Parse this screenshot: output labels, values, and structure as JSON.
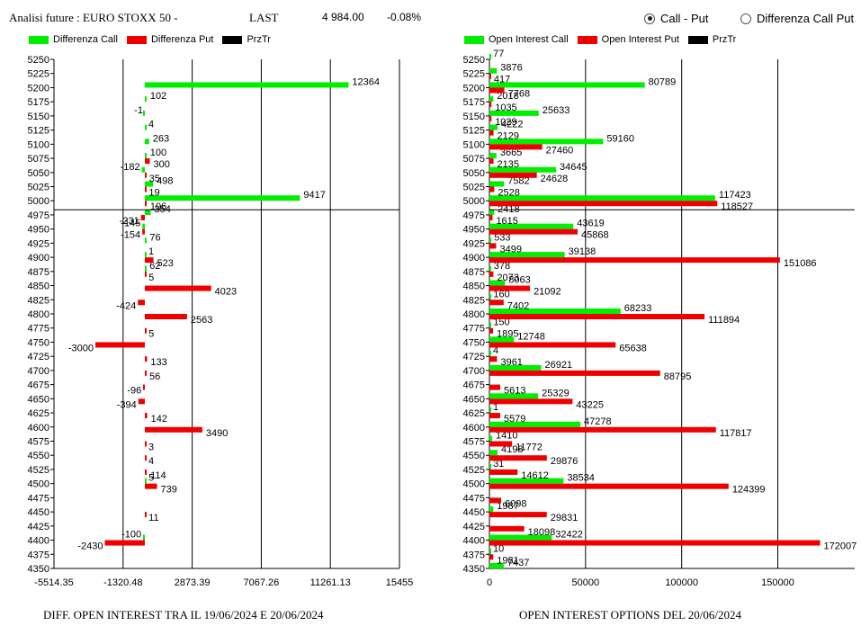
{
  "header": {
    "title": "Analisi future : EURO STOXX 50 -",
    "last_label": "LAST",
    "last_value": "4 984.00",
    "change": "-0.08%",
    "radio_call_put": "Call - Put",
    "radio_diff": "Differenza Call Put",
    "selected": "call-put"
  },
  "colors": {
    "call": "#00ee00",
    "put": "#ee0000",
    "prztr": "#000000"
  },
  "left_legend": [
    "Differenza Call",
    "Differenza Put",
    "PrzTr"
  ],
  "right_legend": [
    "Open Interest Call",
    "Open Interest Put",
    "PrzTr"
  ],
  "captions": {
    "left": "DIFF. OPEN INTEREST TRA IL 19/06/2024 E 20/06/2024",
    "right": "OPEN INTEREST OPTIONS DEL 20/06/2024"
  },
  "chart_data": [
    {
      "type": "bar",
      "orientation": "horizontal",
      "categories": [
        4350,
        4375,
        4400,
        4425,
        4450,
        4475,
        4500,
        4525,
        4550,
        4575,
        4600,
        4625,
        4650,
        4675,
        4700,
        4725,
        4750,
        4775,
        4800,
        4825,
        4850,
        4875,
        4900,
        4925,
        4950,
        4975,
        5000,
        5025,
        5050,
        5075,
        5100,
        5125,
        5150,
        5175,
        5200,
        5225,
        5250
      ],
      "series": [
        {
          "name": "Differenza Call",
          "values": [
            null,
            null,
            -100,
            null,
            null,
            null,
            5,
            null,
            null,
            null,
            null,
            null,
            null,
            null,
            null,
            null,
            null,
            null,
            null,
            null,
            null,
            62,
            1,
            76,
            -145,
            354,
            9417,
            498,
            -182,
            100,
            263,
            4,
            -1,
            102,
            12364,
            null,
            null
          ]
        },
        {
          "name": "Differenza Put",
          "values": [
            null,
            null,
            -2430,
            null,
            11,
            null,
            739,
            114,
            4,
            3,
            3490,
            142,
            -394,
            -96,
            56,
            133,
            -3000,
            5,
            2563,
            -424,
            4023,
            5,
            523,
            null,
            -154,
            -231,
            106,
            19,
            35,
            300,
            null,
            null,
            null,
            null,
            null,
            null,
            null
          ]
        }
      ],
      "xticks": [
        "-5514.35",
        "-1320.48",
        "2873.39",
        "7067.26",
        "11261.13",
        "15455"
      ],
      "xlim": [
        -5514.35,
        15455
      ],
      "prztr": 4984
    },
    {
      "type": "bar",
      "orientation": "horizontal",
      "categories": [
        4350,
        4375,
        4400,
        4425,
        4450,
        4475,
        4500,
        4525,
        4550,
        4575,
        4600,
        4625,
        4650,
        4675,
        4700,
        4725,
        4750,
        4775,
        4800,
        4825,
        4850,
        4875,
        4900,
        4925,
        4950,
        4975,
        5000,
        5025,
        5050,
        5075,
        5100,
        5125,
        5150,
        5175,
        5200,
        5225,
        5250
      ],
      "series": [
        {
          "name": "Open Interest Call",
          "values": [
            7437,
            10,
            32422,
            null,
            1987,
            null,
            38534,
            31,
            4198,
            1410,
            47278,
            1,
            25329,
            null,
            26921,
            4,
            12748,
            150,
            68233,
            160,
            8063,
            378,
            39138,
            533,
            43619,
            2418,
            117423,
            7582,
            34645,
            3665,
            59160,
            4222,
            25633,
            2018,
            80789,
            3876,
            77
          ]
        },
        {
          "name": "Open Interest Put",
          "values": [
            null,
            1981,
            172007,
            18098,
            29831,
            6098,
            124399,
            14612,
            29876,
            11772,
            117817,
            5579,
            43225,
            5613,
            88795,
            3961,
            65638,
            1895,
            111894,
            7402,
            21092,
            2073,
            151086,
            3499,
            45868,
            1615,
            118527,
            2528,
            24628,
            2135,
            27460,
            2129,
            1029,
            1035,
            7768,
            417,
            null
          ]
        }
      ],
      "xticks": [
        "0",
        "50000",
        "100000",
        "150000"
      ],
      "xlim": [
        0,
        190000
      ],
      "prztr": 4984
    }
  ]
}
